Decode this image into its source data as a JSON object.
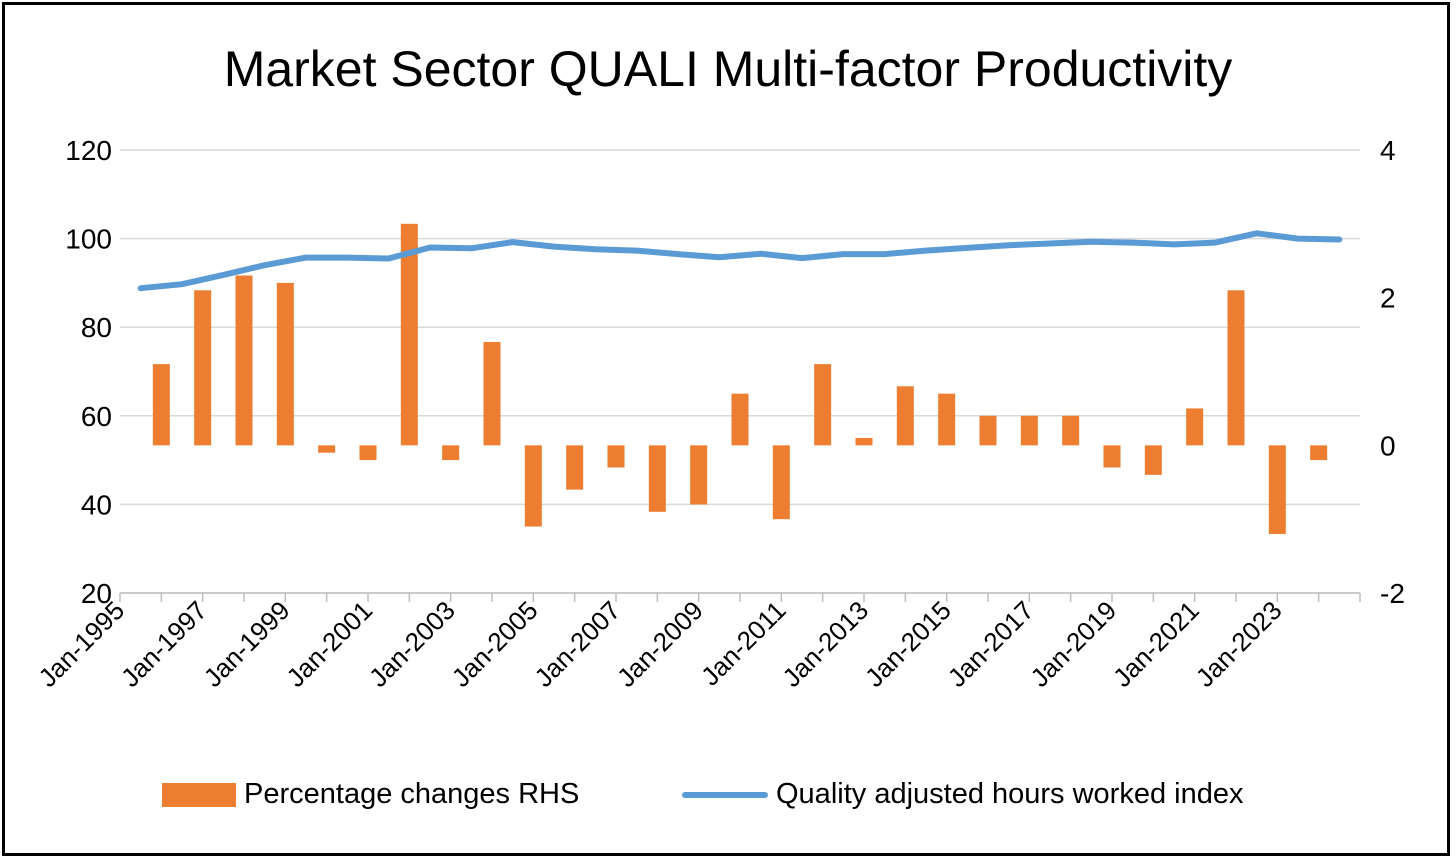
{
  "chart_data": {
    "type": "bar+line",
    "title": "Market Sector QUALI Multi-factor Productivity",
    "x_tick_labels": [
      "Jan-1995",
      "Jan-1997",
      "Jan-1999",
      "Jan-2001",
      "Jan-2003",
      "Jan-2005",
      "Jan-2007",
      "Jan-2009",
      "Jan-2011",
      "Jan-2013",
      "Jan-2015",
      "Jan-2017",
      "Jan-2019",
      "Jan-2021",
      "Jan-2023"
    ],
    "left_axis": {
      "ylim": [
        20,
        120
      ],
      "ticks": [
        20,
        40,
        60,
        80,
        100,
        120
      ]
    },
    "right_axis": {
      "ylim": [
        -2,
        4
      ],
      "ticks": [
        -2,
        0,
        2,
        4
      ]
    },
    "gridlines": true,
    "legend_position": "bottom",
    "series": [
      {
        "name": "Percentage changes RHS",
        "type": "bar",
        "axis": "right",
        "color": "#ED7D31",
        "values": [
          1.1,
          2.1,
          2.3,
          2.2,
          -0.1,
          -0.2,
          3.0,
          -0.2,
          1.4,
          -1.1,
          -0.6,
          -0.3,
          -0.9,
          -0.8,
          0.7,
          -1.0,
          1.1,
          0.1,
          0.8,
          0.7,
          0.4,
          0.4,
          0.4,
          -0.3,
          -0.4,
          0.5,
          2.1,
          -1.2,
          -0.2
        ]
      },
      {
        "name": "Quality adjusted hours worked index",
        "type": "line",
        "axis": "left",
        "color": "#5B9BD5",
        "values": [
          88.8,
          89.7,
          91.8,
          94.0,
          95.7,
          95.7,
          95.5,
          98.0,
          97.8,
          99.2,
          98.2,
          97.6,
          97.3,
          96.5,
          95.8,
          96.6,
          95.6,
          96.5,
          96.5,
          97.3,
          97.9,
          98.5,
          98.9,
          99.3,
          99.1,
          98.7,
          99.1,
          101.2,
          100.0,
          99.8
        ]
      }
    ]
  }
}
